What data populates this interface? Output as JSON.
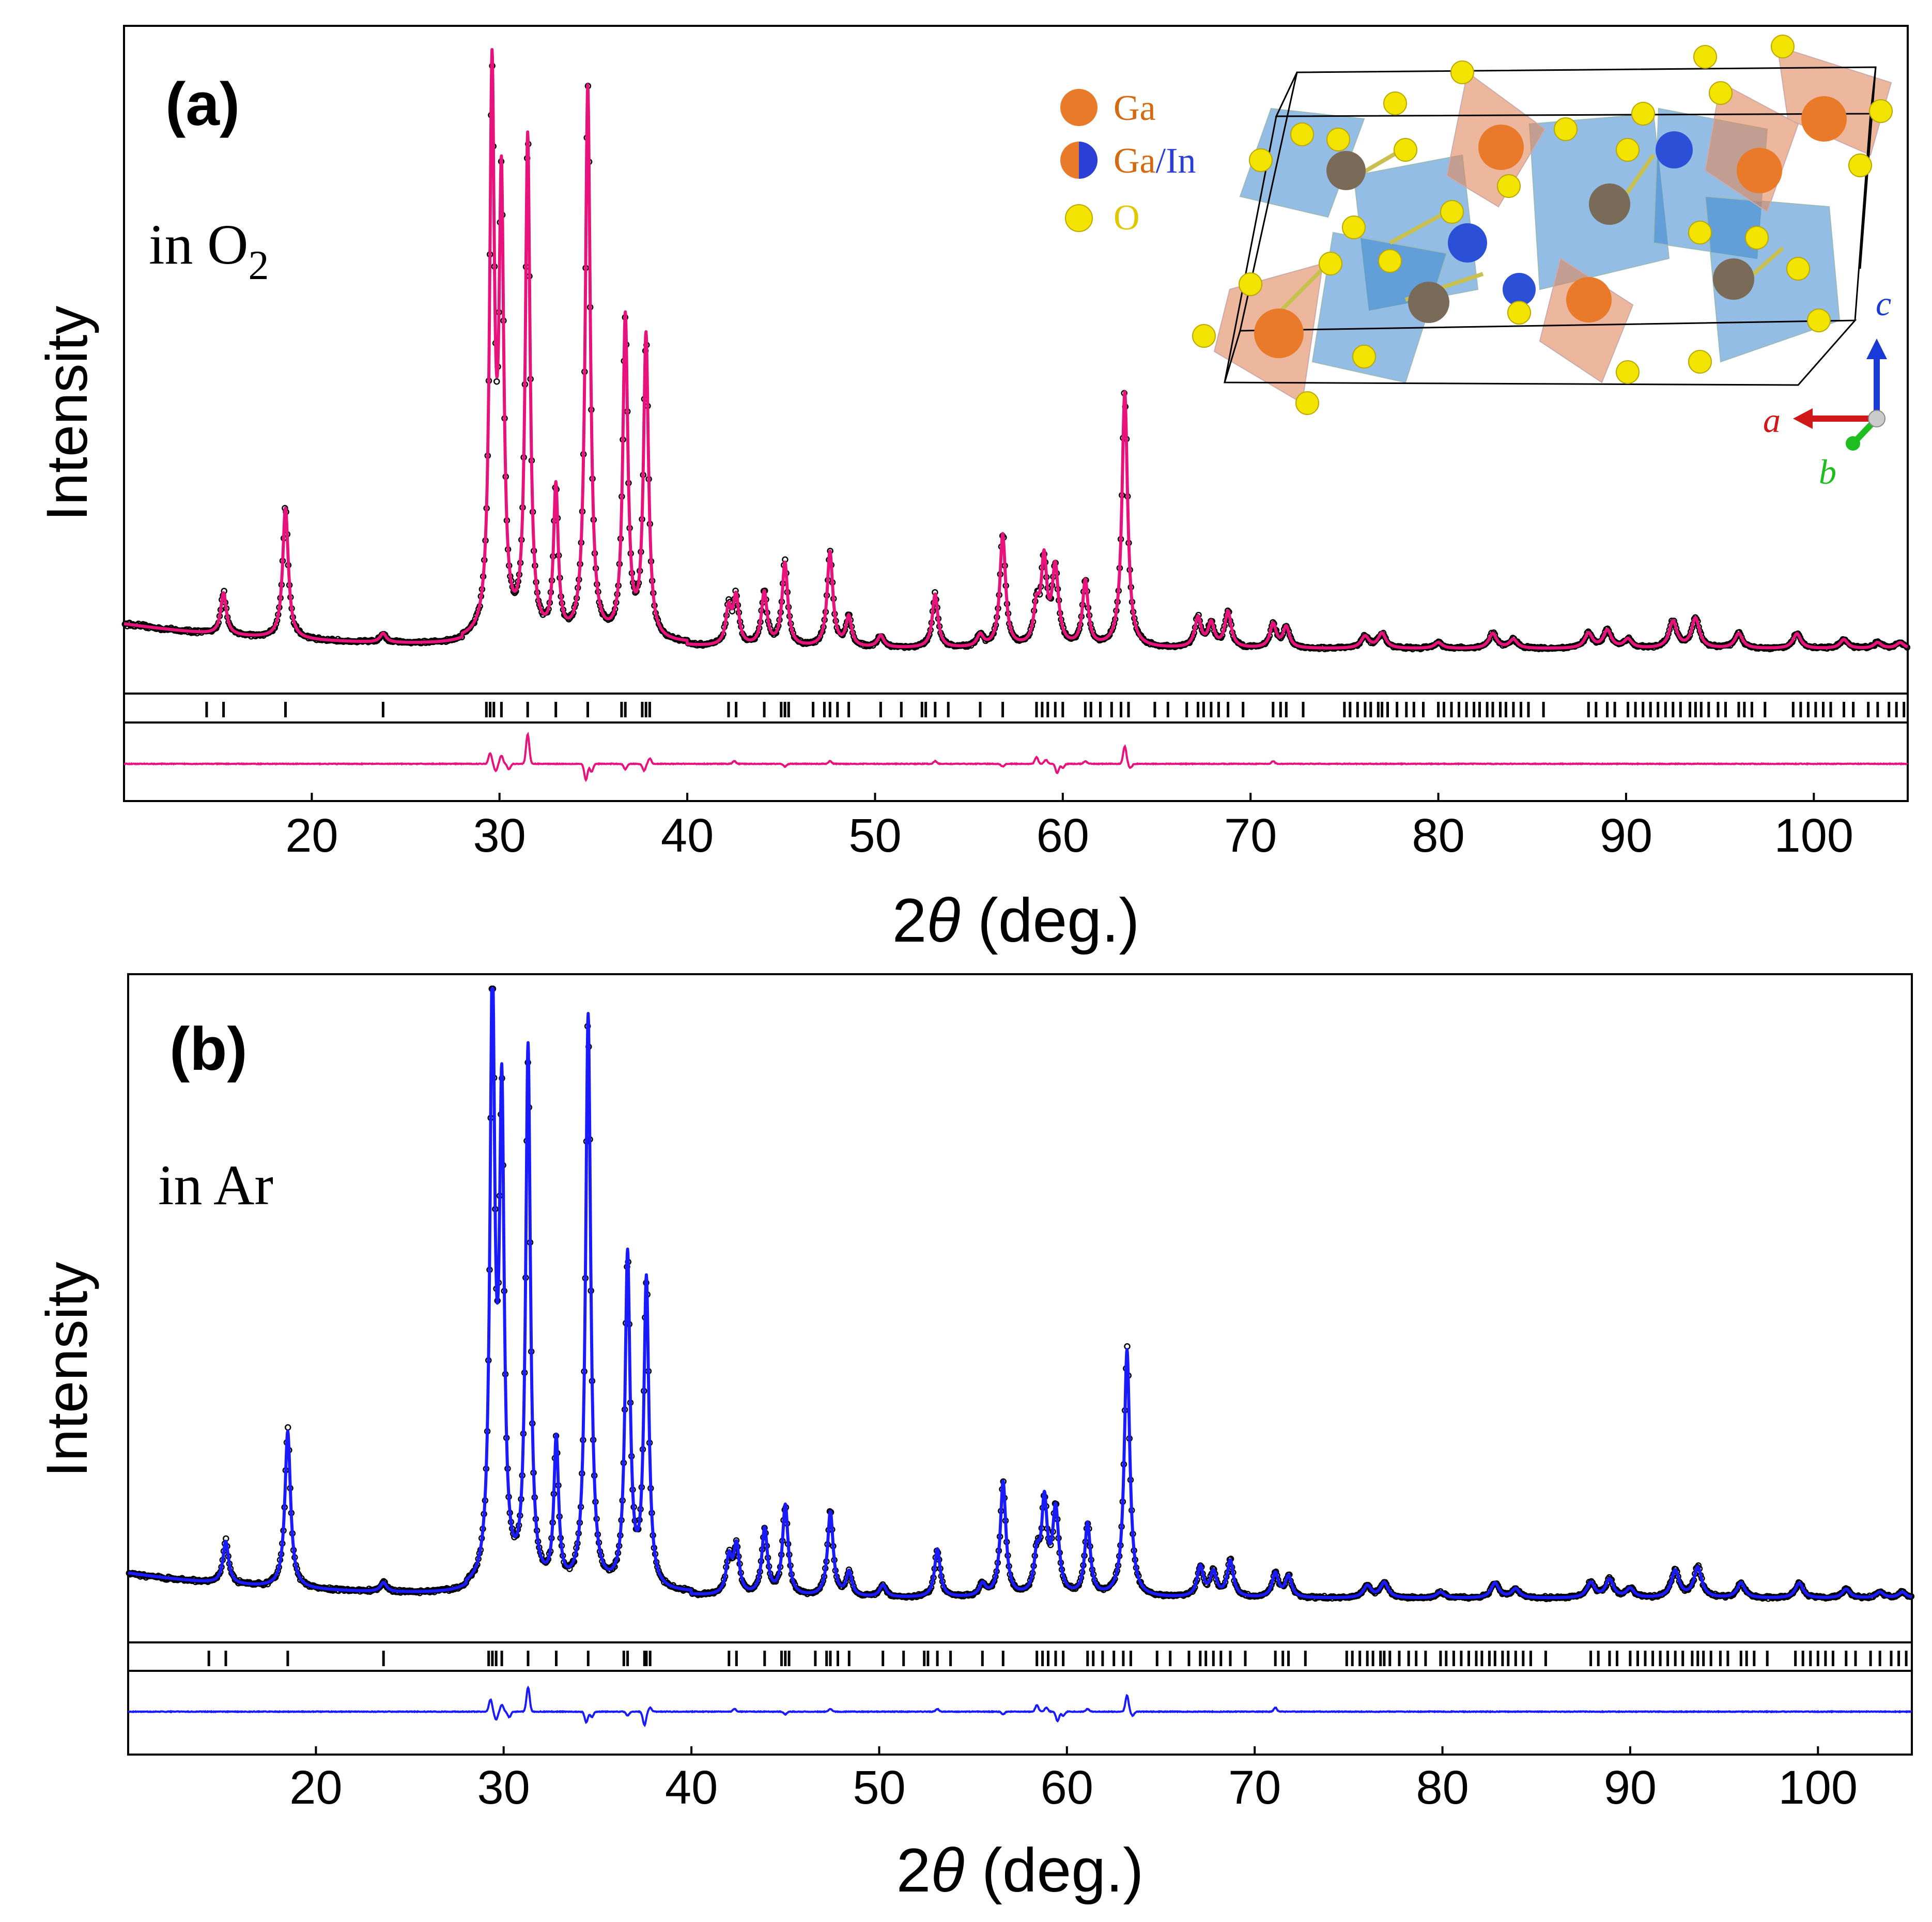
{
  "chart_data": [
    {
      "type": "line",
      "panel_label": "(a)",
      "condition": "in O",
      "condition_subscript": "2",
      "title": "",
      "xlabel_pre": "2",
      "xlabel_theta": "θ",
      "xlabel_post": " (deg.)",
      "ylabel": "Intensity",
      "xlim": [
        10,
        105
      ],
      "ylim": [
        0,
        100
      ],
      "xticks": [
        20,
        30,
        40,
        50,
        60,
        70,
        80,
        90,
        100
      ],
      "fit_color": "#e8127c",
      "observed_color": "#000000",
      "baseline": 3,
      "peaks": [
        {
          "x": 15.3,
          "h": 7,
          "w": 0.18
        },
        {
          "x": 18.6,
          "h": 22,
          "w": 0.18
        },
        {
          "x": 23.8,
          "h": 1.5,
          "w": 0.2
        },
        {
          "x": 29.6,
          "h": 93,
          "w": 0.15
        },
        {
          "x": 30.1,
          "h": 73,
          "w": 0.15
        },
        {
          "x": 31.5,
          "h": 84,
          "w": 0.15
        },
        {
          "x": 33.0,
          "h": 25,
          "w": 0.15
        },
        {
          "x": 34.7,
          "h": 93,
          "w": 0.16
        },
        {
          "x": 36.7,
          "h": 54,
          "w": 0.16
        },
        {
          "x": 37.8,
          "h": 51,
          "w": 0.16
        },
        {
          "x": 42.2,
          "h": 6,
          "w": 0.18
        },
        {
          "x": 42.6,
          "h": 8,
          "w": 0.18
        },
        {
          "x": 44.1,
          "h": 9,
          "w": 0.18
        },
        {
          "x": 45.2,
          "h": 14,
          "w": 0.18
        },
        {
          "x": 47.6,
          "h": 16,
          "w": 0.18
        },
        {
          "x": 48.6,
          "h": 5,
          "w": 0.18
        },
        {
          "x": 50.3,
          "h": 2,
          "w": 0.2
        },
        {
          "x": 53.2,
          "h": 9,
          "w": 0.18
        },
        {
          "x": 55.6,
          "h": 2,
          "w": 0.2
        },
        {
          "x": 56.8,
          "h": 19,
          "w": 0.18
        },
        {
          "x": 58.6,
          "h": 6,
          "w": 0.18
        },
        {
          "x": 59.0,
          "h": 14,
          "w": 0.18
        },
        {
          "x": 59.6,
          "h": 13,
          "w": 0.2
        },
        {
          "x": 61.2,
          "h": 11,
          "w": 0.18
        },
        {
          "x": 63.3,
          "h": 43,
          "w": 0.18
        },
        {
          "x": 67.2,
          "h": 5,
          "w": 0.2
        },
        {
          "x": 67.9,
          "h": 4,
          "w": 0.2
        },
        {
          "x": 68.8,
          "h": 6,
          "w": 0.2
        },
        {
          "x": 71.2,
          "h": 4,
          "w": 0.2
        },
        {
          "x": 71.9,
          "h": 3.5,
          "w": 0.2
        },
        {
          "x": 76.1,
          "h": 2,
          "w": 0.25
        },
        {
          "x": 77.0,
          "h": 2.5,
          "w": 0.25
        },
        {
          "x": 80.0,
          "h": 1,
          "w": 0.25
        },
        {
          "x": 82.9,
          "h": 2.5,
          "w": 0.25
        },
        {
          "x": 84.0,
          "h": 1.5,
          "w": 0.25
        },
        {
          "x": 88.0,
          "h": 2.5,
          "w": 0.25
        },
        {
          "x": 89.0,
          "h": 3,
          "w": 0.25
        },
        {
          "x": 90.1,
          "h": 1.5,
          "w": 0.25
        },
        {
          "x": 92.5,
          "h": 4.5,
          "w": 0.25
        },
        {
          "x": 93.7,
          "h": 5,
          "w": 0.25
        },
        {
          "x": 96.0,
          "h": 2.5,
          "w": 0.25
        },
        {
          "x": 99.1,
          "h": 2.5,
          "w": 0.25
        },
        {
          "x": 101.6,
          "h": 1.5,
          "w": 0.25
        },
        {
          "x": 103.4,
          "h": 1,
          "w": 0.25
        },
        {
          "x": 104.6,
          "h": 1,
          "w": 0.25
        }
      ],
      "bragg_positions": [
        14.4,
        15.3,
        18.6,
        23.8,
        29.3,
        29.5,
        29.7,
        30.1,
        31.5,
        33.0,
        34.7,
        36.5,
        36.7,
        37.6,
        37.8,
        38.0,
        42.2,
        42.6,
        44.1,
        45.0,
        45.2,
        45.4,
        46.7,
        47.3,
        47.6,
        48.0,
        48.6,
        50.3,
        51.4,
        52.5,
        52.7,
        53.2,
        53.9,
        55.6,
        56.8,
        58.6,
        58.9,
        59.2,
        59.6,
        60.0,
        61.2,
        61.5,
        62.0,
        62.6,
        63.1,
        63.5,
        64.9,
        65.6,
        66.6,
        67.2,
        67.5,
        67.9,
        68.3,
        68.8,
        69.6,
        71.2,
        71.6,
        71.9,
        72.8,
        75.0,
        75.3,
        75.7,
        76.1,
        76.4,
        76.8,
        77.0,
        77.3,
        77.8,
        78.3,
        78.7,
        79.2,
        80.0,
        80.3,
        80.7,
        81.1,
        81.5,
        81.9,
        82.2,
        82.6,
        82.9,
        83.3,
        83.6,
        84.0,
        84.4,
        84.8,
        85.6,
        88.0,
        88.4,
        89.0,
        89.4,
        90.1,
        90.5,
        90.9,
        91.3,
        91.7,
        92.1,
        92.5,
        92.9,
        93.4,
        93.7,
        94.0,
        94.4,
        94.9,
        95.3,
        96.0,
        96.3,
        96.7,
        97.4,
        98.9,
        99.3,
        99.7,
        100.1,
        100.5,
        100.9,
        101.6,
        102.1,
        102.9,
        103.4,
        104.0,
        104.4,
        104.8
      ],
      "difference_features": [
        {
          "x": 29.5,
          "d": 8
        },
        {
          "x": 29.8,
          "d": -5
        },
        {
          "x": 30.1,
          "d": 6
        },
        {
          "x": 30.5,
          "d": -4
        },
        {
          "x": 31.5,
          "d": 22
        },
        {
          "x": 34.6,
          "d": -12
        },
        {
          "x": 34.9,
          "d": -6
        },
        {
          "x": 36.7,
          "d": -4
        },
        {
          "x": 37.7,
          "d": -5
        },
        {
          "x": 38.0,
          "d": 4
        },
        {
          "x": 42.5,
          "d": 2
        },
        {
          "x": 45.2,
          "d": -2
        },
        {
          "x": 47.6,
          "d": 2
        },
        {
          "x": 53.2,
          "d": 2
        },
        {
          "x": 56.8,
          "d": -2
        },
        {
          "x": 58.6,
          "d": 5
        },
        {
          "x": 59.1,
          "d": 3
        },
        {
          "x": 59.7,
          "d": -7
        },
        {
          "x": 60.0,
          "d": -3
        },
        {
          "x": 61.2,
          "d": 2
        },
        {
          "x": 63.3,
          "d": 13
        },
        {
          "x": 63.6,
          "d": -3
        },
        {
          "x": 71.2,
          "d": 2
        }
      ],
      "legend": {
        "Ga": "Ga",
        "GaIn_a": "Ga",
        "GaIn_slash": "/",
        "GaIn_b": "In",
        "O": "O"
      },
      "axes_labels": {
        "a": "a",
        "b": "b",
        "c": "c"
      }
    },
    {
      "type": "line",
      "panel_label": "(b)",
      "condition": "in Ar",
      "title": "",
      "xlabel_pre": "2",
      "xlabel_theta": "θ",
      "xlabel_post": " (deg.)",
      "ylabel": "Intensity",
      "xlim": [
        10,
        105
      ],
      "ylim": [
        0,
        100
      ],
      "xticks": [
        20,
        30,
        40,
        50,
        60,
        70,
        80,
        90,
        100
      ],
      "fit_color": "#1a1aff",
      "observed_color": "#000000",
      "baseline": 3,
      "peaks": [
        {
          "x": 15.2,
          "h": 7,
          "w": 0.18
        },
        {
          "x": 18.5,
          "h": 26,
          "w": 0.18
        },
        {
          "x": 23.6,
          "h": 1.5,
          "w": 0.2
        },
        {
          "x": 29.4,
          "h": 100,
          "w": 0.15
        },
        {
          "x": 29.9,
          "h": 78,
          "w": 0.15
        },
        {
          "x": 31.3,
          "h": 89,
          "w": 0.15
        },
        {
          "x": 32.8,
          "h": 24,
          "w": 0.15
        },
        {
          "x": 34.5,
          "h": 95,
          "w": 0.16
        },
        {
          "x": 36.6,
          "h": 55,
          "w": 0.16
        },
        {
          "x": 37.6,
          "h": 51,
          "w": 0.16
        },
        {
          "x": 42.0,
          "h": 6,
          "w": 0.18
        },
        {
          "x": 42.4,
          "h": 8,
          "w": 0.18
        },
        {
          "x": 43.9,
          "h": 11,
          "w": 0.18
        },
        {
          "x": 45.0,
          "h": 15,
          "w": 0.18
        },
        {
          "x": 47.4,
          "h": 14,
          "w": 0.18
        },
        {
          "x": 48.4,
          "h": 4,
          "w": 0.18
        },
        {
          "x": 50.2,
          "h": 2,
          "w": 0.2
        },
        {
          "x": 53.1,
          "h": 8,
          "w": 0.18
        },
        {
          "x": 55.5,
          "h": 2,
          "w": 0.2
        },
        {
          "x": 56.6,
          "h": 19,
          "w": 0.18
        },
        {
          "x": 58.4,
          "h": 6,
          "w": 0.18
        },
        {
          "x": 58.8,
          "h": 15,
          "w": 0.18
        },
        {
          "x": 59.4,
          "h": 14,
          "w": 0.2
        },
        {
          "x": 61.1,
          "h": 12,
          "w": 0.18
        },
        {
          "x": 63.2,
          "h": 41,
          "w": 0.18
        },
        {
          "x": 67.1,
          "h": 5,
          "w": 0.2
        },
        {
          "x": 67.8,
          "h": 4,
          "w": 0.2
        },
        {
          "x": 68.7,
          "h": 6,
          "w": 0.2
        },
        {
          "x": 71.1,
          "h": 4,
          "w": 0.2
        },
        {
          "x": 71.8,
          "h": 3.5,
          "w": 0.2
        },
        {
          "x": 76.0,
          "h": 2,
          "w": 0.25
        },
        {
          "x": 76.9,
          "h": 2.5,
          "w": 0.25
        },
        {
          "x": 79.9,
          "h": 1,
          "w": 0.25
        },
        {
          "x": 82.8,
          "h": 2.5,
          "w": 0.25
        },
        {
          "x": 83.9,
          "h": 1.5,
          "w": 0.25
        },
        {
          "x": 87.9,
          "h": 2.5,
          "w": 0.25
        },
        {
          "x": 88.9,
          "h": 3,
          "w": 0.25
        },
        {
          "x": 90.0,
          "h": 1.5,
          "w": 0.25
        },
        {
          "x": 92.4,
          "h": 4.5,
          "w": 0.25
        },
        {
          "x": 93.6,
          "h": 5,
          "w": 0.25
        },
        {
          "x": 95.9,
          "h": 2.5,
          "w": 0.25
        },
        {
          "x": 99.0,
          "h": 2.5,
          "w": 0.25
        },
        {
          "x": 101.5,
          "h": 1.5,
          "w": 0.25
        },
        {
          "x": 103.3,
          "h": 1,
          "w": 0.25
        },
        {
          "x": 104.5,
          "h": 1,
          "w": 0.25
        }
      ],
      "bragg_positions": [
        14.3,
        15.2,
        18.5,
        23.6,
        29.2,
        29.4,
        29.6,
        29.9,
        31.3,
        32.8,
        34.5,
        36.4,
        36.6,
        37.5,
        37.6,
        37.8,
        42.0,
        42.4,
        43.9,
        44.8,
        45.0,
        45.2,
        46.6,
        47.2,
        47.4,
        47.8,
        48.4,
        50.2,
        51.3,
        52.4,
        52.6,
        53.1,
        53.8,
        55.5,
        56.6,
        58.4,
        58.7,
        59.0,
        59.4,
        59.8,
        61.1,
        61.4,
        61.9,
        62.5,
        63.0,
        63.4,
        64.8,
        65.5,
        66.5,
        67.1,
        67.4,
        67.8,
        68.2,
        68.7,
        69.5,
        71.1,
        71.5,
        71.8,
        72.7,
        74.9,
        75.2,
        75.6,
        76.0,
        76.3,
        76.7,
        76.9,
        77.2,
        77.7,
        78.2,
        78.6,
        79.1,
        79.9,
        80.2,
        80.6,
        81.0,
        81.4,
        81.8,
        82.1,
        82.5,
        82.8,
        83.2,
        83.5,
        83.9,
        84.3,
        84.7,
        85.5,
        87.9,
        88.3,
        88.9,
        89.3,
        90.0,
        90.4,
        90.8,
        91.2,
        91.6,
        92.0,
        92.4,
        92.8,
        93.3,
        93.6,
        93.9,
        94.3,
        94.8,
        95.2,
        95.9,
        96.2,
        96.6,
        97.3,
        98.8,
        99.2,
        99.6,
        100.0,
        100.4,
        100.8,
        101.5,
        102.0,
        102.8,
        103.3,
        103.9,
        104.3,
        104.7
      ],
      "difference_features": [
        {
          "x": 29.3,
          "d": 9
        },
        {
          "x": 29.6,
          "d": -6
        },
        {
          "x": 29.9,
          "d": 5
        },
        {
          "x": 30.3,
          "d": -4
        },
        {
          "x": 31.3,
          "d": 18
        },
        {
          "x": 34.4,
          "d": -8
        },
        {
          "x": 34.7,
          "d": -4
        },
        {
          "x": 36.6,
          "d": -3
        },
        {
          "x": 37.5,
          "d": -10
        },
        {
          "x": 37.8,
          "d": 3
        },
        {
          "x": 42.3,
          "d": 2
        },
        {
          "x": 45.0,
          "d": -2
        },
        {
          "x": 47.4,
          "d": 2
        },
        {
          "x": 53.1,
          "d": 2
        },
        {
          "x": 56.6,
          "d": -2
        },
        {
          "x": 58.4,
          "d": 5
        },
        {
          "x": 58.9,
          "d": 3
        },
        {
          "x": 59.5,
          "d": -7
        },
        {
          "x": 59.8,
          "d": -3
        },
        {
          "x": 61.1,
          "d": 2
        },
        {
          "x": 63.2,
          "d": 12
        },
        {
          "x": 63.5,
          "d": -3
        },
        {
          "x": 71.1,
          "d": 3
        }
      ]
    }
  ]
}
